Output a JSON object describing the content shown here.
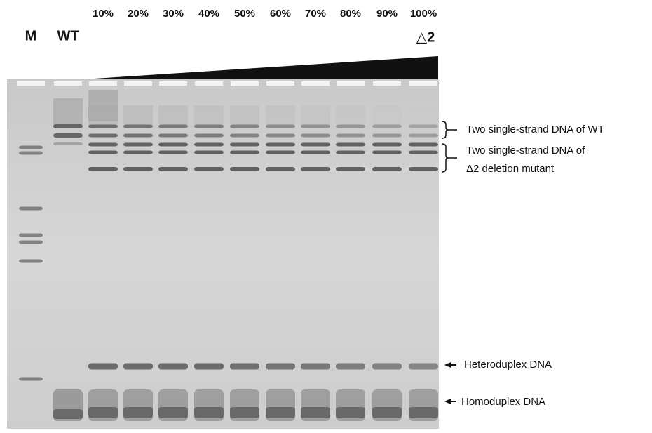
{
  "lane_labels": {
    "marker": "M",
    "wild_type": "WT",
    "ratios": [
      "10%",
      "20%",
      "30%",
      "40%",
      "50%",
      "60%",
      "70%",
      "80%",
      "90%",
      "100%"
    ],
    "mutant": "△2"
  },
  "annotations": {
    "ss_wt": "Two single-strand DNA of WT",
    "ss_mutant": [
      "Two single-strand DNA of",
      "Δ2 deletion mutant"
    ],
    "heteroduplex": "Heteroduplex DNA",
    "homoduplex": "Homoduplex DNA"
  }
}
